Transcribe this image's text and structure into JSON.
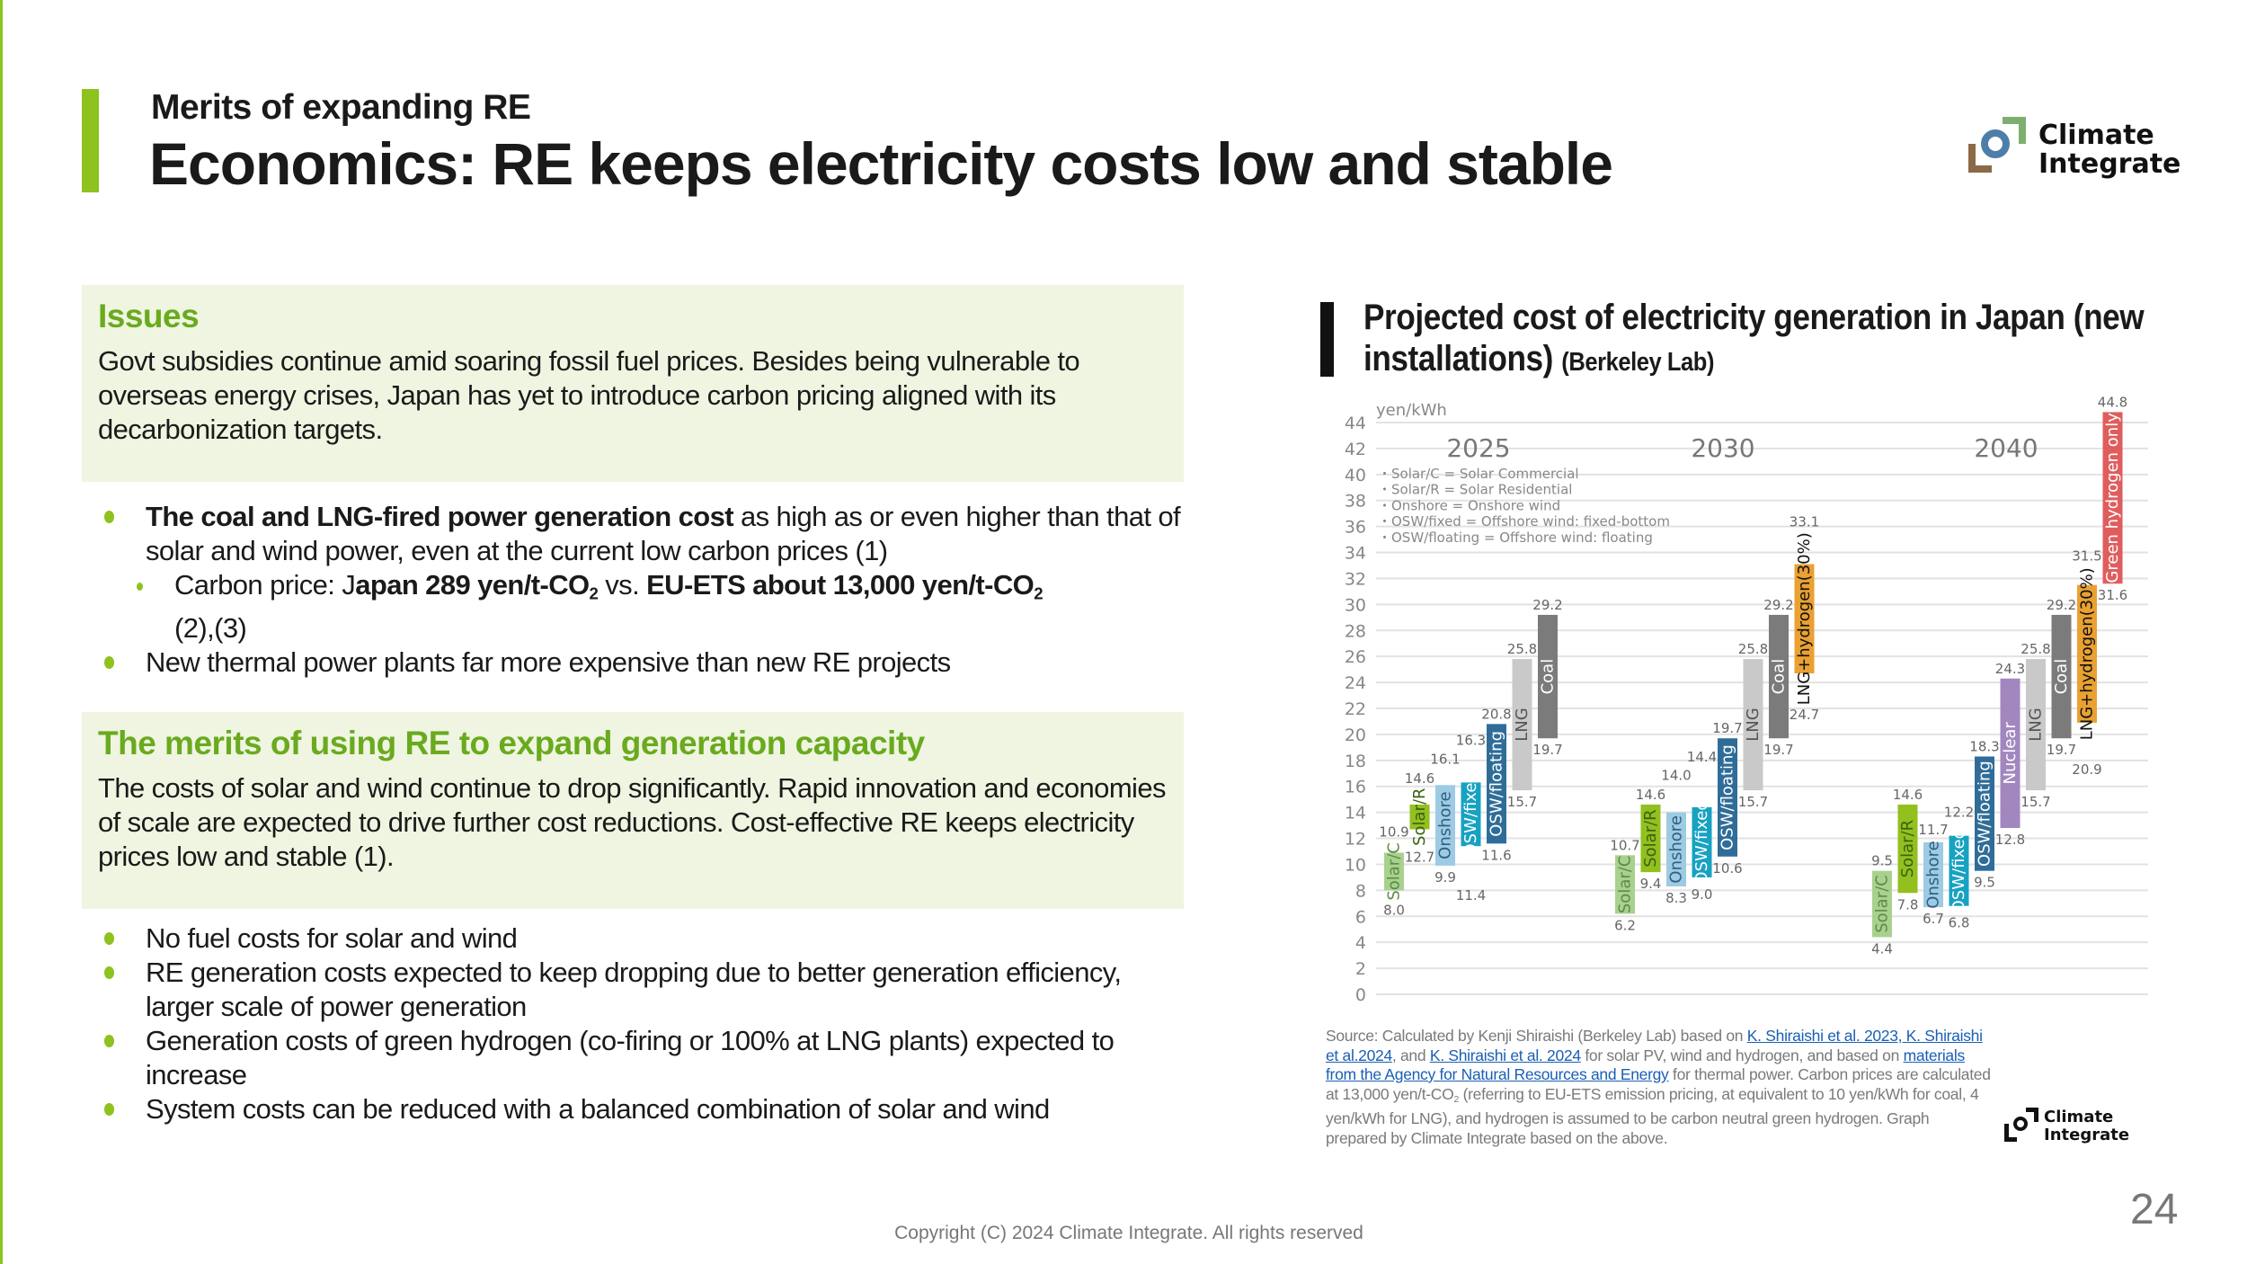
{
  "header": {
    "subtitle": "Merits of expanding RE",
    "title": "Economics: RE keeps electricity costs low and stable",
    "logo_text": [
      "Climate",
      "Integrate"
    ]
  },
  "issues": {
    "heading": "Issues",
    "body": "Govt subsidies continue amid soaring fossil fuel prices. Besides being vulnerable to overseas energy crises, Japan has yet to introduce carbon pricing aligned with its decarbonization targets."
  },
  "issues_bullets": {
    "b1_bold": "The coal and LNG-fired power generation cost",
    "b1_rest": " as high as or even higher than that of solar and wind power, even at the current low carbon prices (1)",
    "sub_prefix": "Carbon price: J",
    "sub_bold1": "apan 289 yen/t-CO",
    "sub_vs": " vs. ",
    "sub_bold2": "EU-ETS  about 13,000 yen/t-CO",
    "sub_co2_sub": "2",
    "sub_refs": "(2),(3)",
    "b2": "New thermal power plants far more expensive than new RE projects"
  },
  "merits": {
    "heading": "The merits of using RE to expand generation capacity",
    "body": "The costs of solar and wind continue to drop significantly. Rapid innovation and economies of scale are expected to drive further cost reductions. Cost-effective RE keeps electricity prices low and stable (1)."
  },
  "merits_bullets": [
    "No fuel costs for solar and wind",
    "RE generation costs expected to keep dropping due to better generation efficiency, larger scale of power generation",
    "Generation costs of green hydrogen (co-firing or 100% at LNG plants) expected to increase",
    "System costs can be reduced with a balanced combination of solar and wind"
  ],
  "chart_title": {
    "main": "Projected cost of electricity generation in Japan (new installations)",
    "source": "(Berkeley Lab)"
  },
  "chart_data": {
    "type": "bar",
    "subtype": "floating-range",
    "ylabel": "yen/kWh",
    "ylim": [
      0,
      44
    ],
    "yticks": [
      0,
      2,
      4,
      6,
      8,
      10,
      12,
      14,
      16,
      18,
      20,
      22,
      24,
      26,
      28,
      30,
      32,
      34,
      36,
      38,
      40,
      42,
      44
    ],
    "grid": true,
    "notes": [
      "・Solar/C = Solar Commercial",
      "・Solar/R = Solar Residential",
      "・Onshore = Onshore wind",
      "・OSW/fixed = Offshore wind: fixed-bottom",
      "・OSW/floating = Offshore wind: floating"
    ],
    "colors": {
      "Solar/C": "#a9d18e",
      "Solar/R": "#92c01f",
      "Onshore": "#9dcbe3",
      "OSW/fixed": "#17a2c2",
      "OSW/floating": "#2f6d98",
      "LNG": "#c9c9c9",
      "Coal": "#7b7b7b",
      "LNG+hydrogen(30%)": "#e9a131",
      "Nuclear": "#a287bf",
      "Green hydrogen only": "#e05d5d"
    },
    "groups": [
      {
        "year": "2025",
        "bars": [
          {
            "name": "Solar/C",
            "low": 8.0,
            "high": 10.9
          },
          {
            "name": "Solar/R",
            "low": 12.7,
            "high": 14.6
          },
          {
            "name": "Onshore",
            "low": 9.9,
            "high": 16.1
          },
          {
            "name": "OSW/fixed",
            "low": 11.4,
            "high": 16.3
          },
          {
            "name": "OSW/floating",
            "low": 11.6,
            "high": 20.8
          },
          {
            "name": "LNG",
            "low": 15.7,
            "high": 25.8
          },
          {
            "name": "Coal",
            "low": 19.7,
            "high": 29.2
          }
        ]
      },
      {
        "year": "2030",
        "bars": [
          {
            "name": "Solar/C",
            "low": 6.2,
            "high": 10.7
          },
          {
            "name": "Solar/R",
            "low": 9.4,
            "high": 14.6
          },
          {
            "name": "Onshore",
            "low": 8.3,
            "high": 14.0
          },
          {
            "name": "OSW/fixed",
            "low": 9.0,
            "high": 14.4
          },
          {
            "name": "OSW/floating",
            "low": 10.6,
            "high": 19.7
          },
          {
            "name": "LNG",
            "low": 15.7,
            "high": 25.8
          },
          {
            "name": "Coal",
            "low": 19.7,
            "high": 29.2
          },
          {
            "name": "LNG+hydrogen(30%)",
            "low": 24.7,
            "high": 33.1
          }
        ]
      },
      {
        "year": "2040",
        "bars": [
          {
            "name": "Solar/C",
            "low": 4.4,
            "high": 9.5
          },
          {
            "name": "Solar/R",
            "low": 7.8,
            "high": 14.6
          },
          {
            "name": "Onshore",
            "low": 6.7,
            "high": 11.7
          },
          {
            "name": "OSW/fixed",
            "low": 6.8,
            "high": 12.2
          },
          {
            "name": "OSW/floating",
            "low": 9.5,
            "high": 18.3
          },
          {
            "name": "Nuclear",
            "low": 12.8,
            "high": 24.3
          },
          {
            "name": "LNG",
            "low": 15.7,
            "high": 25.8
          },
          {
            "name": "Coal",
            "low": 19.7,
            "high": 29.2
          },
          {
            "name": "LNG+hydrogen(30%)",
            "low": 20.9,
            "high": 31.5
          },
          {
            "name": "Green hydrogen only",
            "low": 31.6,
            "high": 44.8
          }
        ]
      }
    ]
  },
  "source": {
    "t1": "Source: Calculated by Kenji Shiraishi (Berkeley Lab) based on ",
    "l1": "K. Shiraishi et al. 2023, K. Shiraishi et al.2024",
    "t2": ", and ",
    "l2": "K. Shiraishi et al. 2024",
    "t3": " for solar PV, wind and hydrogen, and based on ",
    "l3": "materials from the Agency for Natural Resources and Energy",
    "t4": " for thermal power. Carbon prices are calculated at 13,000 yen/t-CO",
    "t4_sub": "2",
    "t5": " (referring to EU-ETS emission pricing, at equivalent to 10 yen/kWh for coal, 4 yen/kWh for LNG), and hydrogen is assumed to be carbon neutral green hydrogen. Graph prepared by Climate Integrate based on the above."
  },
  "footer": {
    "page_number": "24",
    "copyright": "Copyright (C) 2024 Climate Integrate. All rights reserved"
  }
}
